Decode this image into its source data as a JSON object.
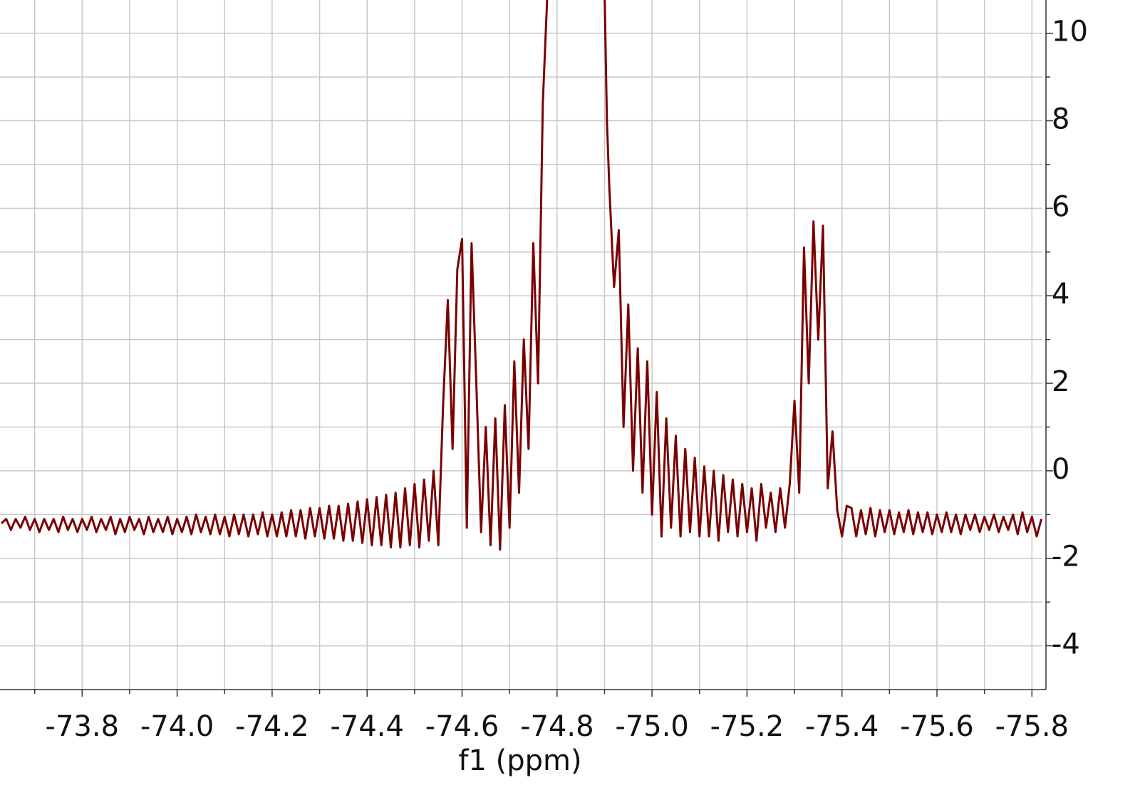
{
  "chart_data": {
    "type": "line",
    "x_label": "f1 (ppm)",
    "xlim": [
      -73.627,
      -75.822
    ],
    "ylim": [
      -5,
      10.76
    ],
    "xticks": [
      -73.8,
      {
        "value": -74.0,
        "label": "-74.0"
      },
      -74.2,
      -74.4,
      -74.6,
      -74.8,
      {
        "value": -75.0,
        "label": "-75.0"
      },
      -75.2,
      -75.4,
      -75.6,
      -75.8
    ],
    "x_minor_ticks": [
      -73.7,
      -73.9,
      -74.1,
      -74.3,
      -74.5,
      -74.7,
      -74.9,
      -75.1,
      -75.3,
      -75.5,
      -75.7
    ],
    "yticks": [
      -4,
      -2,
      0,
      2,
      4,
      6,
      8,
      10
    ],
    "y_minor_ticks": [
      -3,
      -1,
      1,
      3,
      5,
      7,
      9
    ],
    "grid": true,
    "y_axis_side": "right",
    "series": [
      {
        "color": "#7a0000",
        "x": [
          -73.63,
          -73.64,
          -73.65,
          -73.66,
          -73.67,
          -73.68,
          -73.69,
          -73.7,
          -73.71,
          -73.72,
          -73.73,
          -73.74,
          -73.75,
          -73.76,
          -73.77,
          -73.78,
          -73.79,
          -73.8,
          -73.81,
          -73.82,
          -73.83,
          -73.84,
          -73.85,
          -73.86,
          -73.87,
          -73.88,
          -73.89,
          -73.9,
          -73.91,
          -73.92,
          -73.93,
          -73.94,
          -73.95,
          -73.96,
          -73.97,
          -73.98,
          -73.99,
          -74.0,
          -74.01,
          -74.02,
          -74.03,
          -74.04,
          -74.05,
          -74.06,
          -74.07,
          -74.08,
          -74.09,
          -74.1,
          -74.11,
          -74.12,
          -74.13,
          -74.14,
          -74.15,
          -74.16,
          -74.17,
          -74.18,
          -74.19,
          -74.2,
          -74.21,
          -74.22,
          -74.23,
          -74.24,
          -74.25,
          -74.26,
          -74.27,
          -74.28,
          -74.29,
          -74.3,
          -74.31,
          -74.32,
          -74.33,
          -74.34,
          -74.35,
          -74.36,
          -74.37,
          -74.38,
          -74.39,
          -74.4,
          -74.41,
          -74.42,
          -74.43,
          -74.44,
          -74.45,
          -74.46,
          -74.47,
          -74.48,
          -74.49,
          -74.5,
          -74.51,
          -74.52,
          -74.53,
          -74.54,
          -74.55,
          -74.56,
          -74.57,
          -74.58,
          -74.59,
          -74.6,
          -74.61,
          -74.62,
          -74.63,
          -74.64,
          -74.65,
          -74.66,
          -74.67,
          -74.68,
          -74.69,
          -74.7,
          -74.71,
          -74.72,
          -74.73,
          -74.74,
          -74.75,
          -74.76,
          -74.77,
          -74.78,
          -74.9,
          -74.905,
          -74.91,
          -74.92,
          -74.93,
          -74.94,
          -74.95,
          -74.96,
          -74.97,
          -74.98,
          -74.99,
          -75.0,
          -75.01,
          -75.02,
          -75.03,
          -75.04,
          -75.05,
          -75.06,
          -75.07,
          -75.08,
          -75.09,
          -75.1,
          -75.11,
          -75.12,
          -75.13,
          -75.14,
          -75.15,
          -75.16,
          -75.17,
          -75.18,
          -75.19,
          -75.2,
          -75.21,
          -75.22,
          -75.23,
          -75.24,
          -75.25,
          -75.26,
          -75.27,
          -75.28,
          -75.29,
          -75.3,
          -75.31,
          -75.32,
          -75.33,
          -75.34,
          -75.35,
          -75.36,
          -75.37,
          -75.38,
          -75.39,
          -75.4,
          -75.41,
          -75.42,
          -75.43,
          -75.44,
          -75.45,
          -75.46,
          -75.47,
          -75.48,
          -75.49,
          -75.5,
          -75.51,
          -75.52,
          -75.53,
          -75.54,
          -75.55,
          -75.56,
          -75.57,
          -75.58,
          -75.59,
          -75.6,
          -75.61,
          -75.62,
          -75.63,
          -75.64,
          -75.65,
          -75.66,
          -75.67,
          -75.68,
          -75.69,
          -75.7,
          -75.71,
          -75.72,
          -75.73,
          -75.74,
          -75.75,
          -75.76,
          -75.77,
          -75.78,
          -75.79,
          -75.8,
          -75.81,
          -75.82
        ],
        "values": [
          -1.2,
          -1.1,
          -1.35,
          -1.1,
          -1.3,
          -1.05,
          -1.35,
          -1.1,
          -1.4,
          -1.1,
          -1.35,
          -1.1,
          -1.4,
          -1.05,
          -1.35,
          -1.1,
          -1.4,
          -1.1,
          -1.35,
          -1.05,
          -1.4,
          -1.1,
          -1.35,
          -1.05,
          -1.45,
          -1.1,
          -1.4,
          -1.05,
          -1.35,
          -1.1,
          -1.45,
          -1.05,
          -1.4,
          -1.1,
          -1.4,
          -1.05,
          -1.45,
          -1.1,
          -1.4,
          -1.05,
          -1.45,
          -1.0,
          -1.4,
          -1.05,
          -1.45,
          -1.0,
          -1.45,
          -1.05,
          -1.5,
          -1.0,
          -1.45,
          -1.0,
          -1.5,
          -1.0,
          -1.45,
          -0.95,
          -1.5,
          -1.0,
          -1.5,
          -0.95,
          -1.5,
          -0.9,
          -1.5,
          -0.9,
          -1.55,
          -0.85,
          -1.5,
          -0.85,
          -1.55,
          -0.8,
          -1.55,
          -0.8,
          -1.6,
          -0.75,
          -1.6,
          -0.7,
          -1.65,
          -0.65,
          -1.7,
          -0.6,
          -1.7,
          -0.55,
          -1.75,
          -0.5,
          -1.75,
          -0.4,
          -1.7,
          -0.3,
          -1.75,
          -0.2,
          -1.6,
          0.0,
          -1.7,
          1.5,
          3.9,
          0.5,
          4.6,
          5.3,
          -1.3,
          5.2,
          2.0,
          -1.4,
          1.0,
          -1.7,
          1.2,
          -1.8,
          1.5,
          -1.3,
          2.5,
          -0.5,
          3.0,
          0.5,
          5.2,
          2.0,
          8.4,
          11,
          11,
          8.0,
          6.5,
          4.2,
          5.5,
          1.0,
          3.8,
          0.0,
          2.8,
          -0.5,
          2.5,
          -1.0,
          1.8,
          -1.5,
          1.2,
          -1.3,
          0.8,
          -1.5,
          0.5,
          -1.4,
          0.3,
          -1.5,
          0.1,
          -1.5,
          0.0,
          -1.6,
          -0.1,
          -1.4,
          -0.2,
          -1.5,
          -0.3,
          -1.4,
          -0.4,
          -1.6,
          -0.3,
          -1.3,
          -0.5,
          -1.4,
          -0.4,
          -1.3,
          -0.3,
          1.6,
          -0.5,
          5.1,
          2.0,
          5.7,
          3.0,
          5.6,
          -0.4,
          0.9,
          -0.9,
          -1.5,
          -0.8,
          -0.85,
          -1.5,
          -0.9,
          -1.45,
          -0.85,
          -1.5,
          -0.9,
          -1.4,
          -0.9,
          -1.45,
          -0.95,
          -1.4,
          -0.9,
          -1.45,
          -0.95,
          -1.4,
          -0.95,
          -1.45,
          -1.0,
          -1.4,
          -0.95,
          -1.4,
          -1.0,
          -1.45,
          -1.0,
          -1.35,
          -1.0,
          -1.4,
          -1.05,
          -1.35,
          -1.0,
          -1.4,
          -1.05,
          -1.35,
          -1.0,
          -1.45,
          -0.95,
          -1.4,
          -1.05,
          -1.5,
          -1.1
        ]
      }
    ]
  }
}
